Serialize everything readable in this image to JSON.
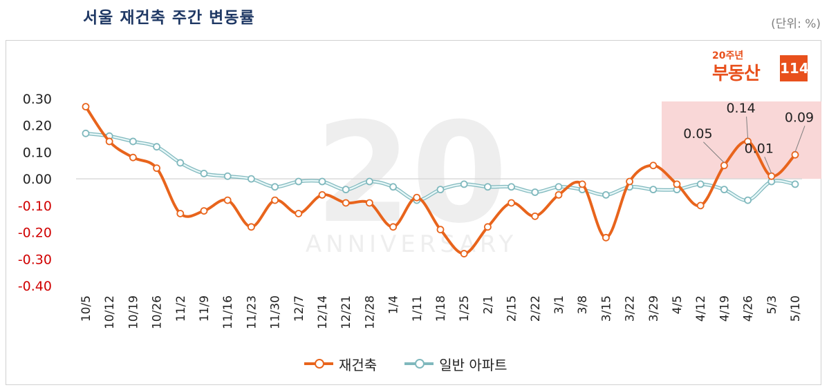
{
  "header": {
    "title": "서울 재건축 주간 변동률",
    "unit": "(단위: %)"
  },
  "logo": {
    "small_text": "20주년",
    "main_text": "부동산",
    "box_text": "114"
  },
  "colors": {
    "series_reconstruction": "#e8641c",
    "series_apartment": "#9ed2d6",
    "highlight": "#f8d0d0",
    "negative_tick": "#d00000"
  },
  "chart_data": {
    "type": "line",
    "title": "서울 재건축 주간 변동률",
    "xlabel": "",
    "ylabel": "",
    "ylim": [
      -0.4,
      0.3
    ],
    "yticks": [
      "0.30",
      "0.20",
      "0.10",
      "0.00",
      "-0.10",
      "-0.20",
      "-0.30",
      "-0.40"
    ],
    "categories": [
      "10/5",
      "10/12",
      "10/19",
      "10/26",
      "11/2",
      "11/9",
      "11/16",
      "11/23",
      "11/30",
      "12/7",
      "12/14",
      "12/21",
      "12/28",
      "1/4",
      "1/11",
      "1/18",
      "1/25",
      "2/1",
      "2/15",
      "2/22",
      "3/1",
      "3/8",
      "3/15",
      "3/22",
      "3/29",
      "4/5",
      "4/12",
      "4/19",
      "4/26",
      "5/3",
      "5/10"
    ],
    "series": [
      {
        "name": "재건축",
        "values": [
          0.27,
          0.14,
          0.08,
          0.04,
          -0.13,
          -0.12,
          -0.08,
          -0.18,
          -0.08,
          -0.13,
          -0.06,
          -0.09,
          -0.09,
          -0.18,
          -0.07,
          -0.19,
          -0.28,
          -0.18,
          -0.09,
          -0.14,
          -0.06,
          -0.02,
          -0.22,
          -0.01,
          0.05,
          -0.02,
          -0.1,
          0.05,
          0.14,
          0.01,
          0.09
        ]
      },
      {
        "name": "일반 아파트",
        "values": [
          0.17,
          0.16,
          0.14,
          0.12,
          0.06,
          0.02,
          0.01,
          0.0,
          -0.03,
          -0.01,
          -0.01,
          -0.04,
          -0.01,
          -0.03,
          -0.08,
          -0.04,
          -0.02,
          -0.03,
          -0.03,
          -0.05,
          -0.03,
          -0.04,
          -0.06,
          -0.03,
          -0.04,
          -0.04,
          -0.02,
          -0.04,
          -0.08,
          -0.01,
          -0.02
        ]
      }
    ],
    "annotations": [
      {
        "label": "0.05",
        "category": "4/19"
      },
      {
        "label": "0.14",
        "category": "4/26"
      },
      {
        "label": "0.01",
        "category": "5/3"
      },
      {
        "label": "0.09",
        "category": "5/10"
      }
    ],
    "highlight_range": [
      "4/5",
      "5/10"
    ],
    "grid": false,
    "legend_position": "bottom"
  }
}
